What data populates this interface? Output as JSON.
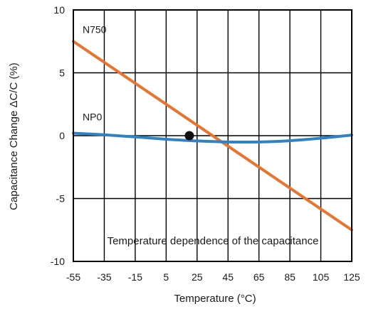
{
  "chart_data": {
    "type": "line",
    "xlabel": "Temperature (°C)",
    "ylabel": "Capacitance Change ΔC/C (%)",
    "annotation": "Temperature dependence of the capacitance",
    "xlim": [
      -55,
      125
    ],
    "ylim": [
      -10,
      10
    ],
    "x_ticks": [
      -55,
      -35,
      -15,
      5,
      25,
      45,
      65,
      85,
      105,
      125
    ],
    "x_tick_labels": [
      "-55",
      "-35",
      "-15",
      "5",
      "25",
      "45",
      "65",
      "85",
      "105",
      "125"
    ],
    "y_ticks": [
      -10,
      -5,
      0,
      5,
      10
    ],
    "y_tick_labels": [
      "-10",
      "-5",
      "0",
      "5",
      "10"
    ],
    "grid": true,
    "series": [
      {
        "name": "N750",
        "color": "#e8742e",
        "x": [
          -55,
          125
        ],
        "y": [
          7.5,
          -7.5
        ]
      },
      {
        "name": "NP0",
        "color": "#2f83c5",
        "x": [
          -55,
          -35,
          -15,
          5,
          25,
          45,
          65,
          85,
          105,
          125
        ],
        "y": [
          0.2,
          0.07,
          -0.1,
          -0.28,
          -0.42,
          -0.5,
          -0.5,
          -0.4,
          -0.2,
          0.05
        ]
      }
    ],
    "reference_point": {
      "x": 20,
      "y": 0,
      "color": "#111111"
    }
  }
}
